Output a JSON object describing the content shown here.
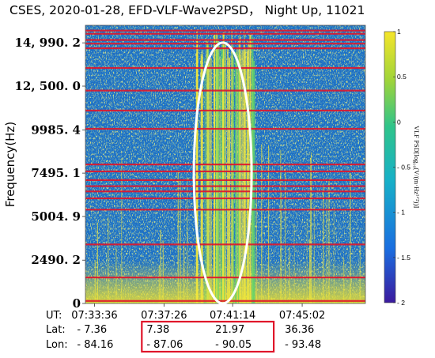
{
  "title": "CSES, 2020-01-28, EFD-VLF-Wave2PSD， Night Up, 11021",
  "colors": {
    "background": "#1e6fc4",
    "interference_lines": "#e0152a",
    "annotation_ellipse": "#ffffff",
    "highlight_box": "#e0152a",
    "colormap": [
      "#3b1a9e",
      "#1a6ee0",
      "#17b0c8",
      "#2fc48a",
      "#9fd43a",
      "#f5e52a"
    ]
  },
  "labels": {
    "ut": "UT:",
    "lat": "Lat:",
    "lon": "Lon:"
  },
  "chart_data": {
    "type": "heatmap",
    "title": "CSES, 2020-01-28, EFD-VLF-Wave2PSD， Night Up, 11021",
    "ylabel": "Frequency(Hz)",
    "ylim": [
      0,
      16000
    ],
    "y_ticks": [
      {
        "value": 0,
        "label": "0"
      },
      {
        "value": 2490.2,
        "label": "2490. 2"
      },
      {
        "value": 5004.9,
        "label": "5004. 9"
      },
      {
        "value": 7495.1,
        "label": "7495. 1"
      },
      {
        "value": 9985.4,
        "label": "9985. 4"
      },
      {
        "value": 12500.0,
        "label": "12, 500. 0"
      },
      {
        "value": 14990.2,
        "label": "14, 990. 2"
      }
    ],
    "xlim_minutes": [
      0,
      15.5
    ],
    "x_ticks": [
      {
        "minute": 0.5,
        "ut": "07:33:36",
        "lat": "- 7.36",
        "lon": "- 84.16"
      },
      {
        "minute": 4.35,
        "ut": "07:37:26",
        "lat": "7.38",
        "lon": "- 87.06"
      },
      {
        "minute": 8.15,
        "ut": "07:41:14",
        "lat": "21.97",
        "lon": "- 90.05"
      },
      {
        "minute": 12.0,
        "ut": "07:45:02",
        "lat": "36.36",
        "lon": "- 93.48"
      }
    ],
    "colorbar": {
      "label": "VLF PSD[log₁₀(V/(m·Hz¹ᐟ²))]",
      "range": [
        -2,
        1
      ],
      "ticks": [
        {
          "value": 1,
          "label": "1"
        },
        {
          "value": 0.5,
          "label": "0.5"
        },
        {
          "value": 0,
          "label": "0"
        },
        {
          "value": -0.5,
          "label": "- 0.5"
        },
        {
          "value": -1,
          "label": "- 1"
        },
        {
          "value": -1.5,
          "label": "- 1.5"
        },
        {
          "value": -2,
          "label": "- 2"
        }
      ]
    },
    "interference_lines_hz": [
      150,
      1500,
      3400,
      5400,
      6050,
      6450,
      6750,
      7100,
      7600,
      8000,
      10050,
      11100,
      12250,
      13550,
      14680,
      14950,
      15160,
      15520,
      15700
    ],
    "annotation_ellipse": {
      "center_minute": 7.6,
      "half_width_minutes": 1.6,
      "center_hz": 7500,
      "half_height_hz": 7500
    },
    "highlight_box_around_ticks": [
      "07:37:26",
      "07:41:14"
    ]
  }
}
